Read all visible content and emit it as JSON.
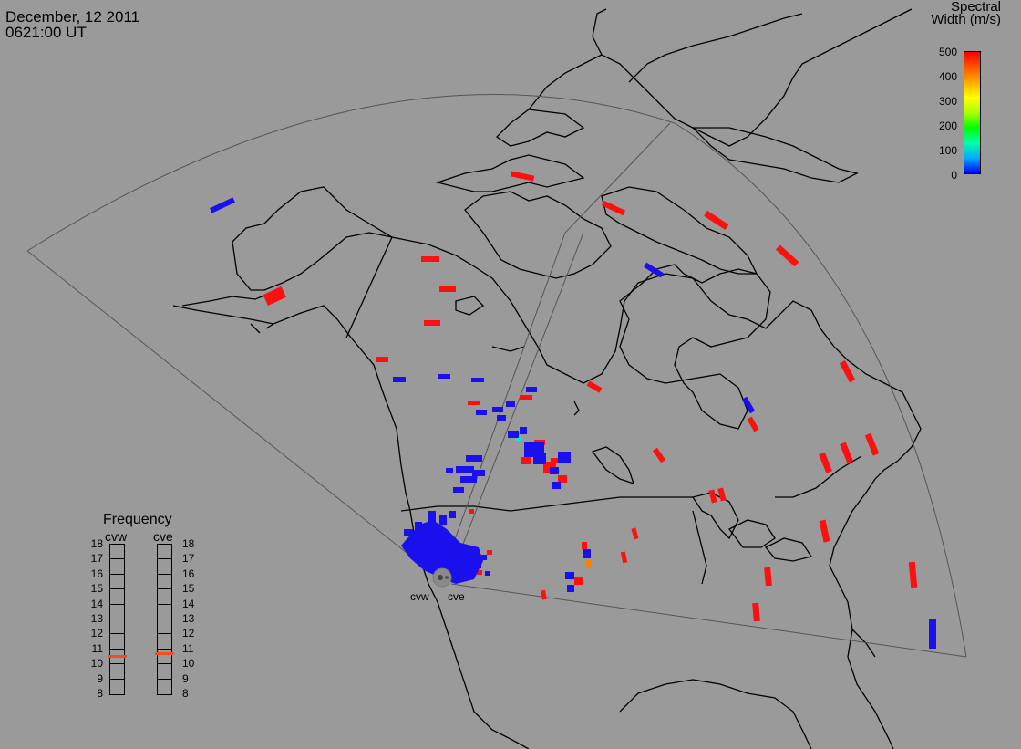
{
  "header": {
    "date": "December, 12 2011",
    "time": "0621:00 UT"
  },
  "colorbar": {
    "title_line1": "Spectral",
    "title_line2": "Width (m/s)",
    "ticks": [
      "500",
      "400",
      "300",
      "200",
      "100",
      "0"
    ],
    "min": 0,
    "max": 500,
    "colors": [
      "#0000ff",
      "#00aaff",
      "#00ffaa",
      "#00ff00",
      "#aaff00",
      "#ffff00",
      "#ffaa00",
      "#ff5500",
      "#ff0000"
    ]
  },
  "radars": {
    "west": "cvw",
    "east": "cve"
  },
  "frequency": {
    "title": "Frequency",
    "columns": [
      "cvw",
      "cve"
    ],
    "scale": [
      "18",
      "17",
      "16",
      "15",
      "14",
      "13",
      "12",
      "11",
      "10",
      "9",
      "8"
    ],
    "cvw_value": 10.5,
    "cve_value": 10.7,
    "marker_color": "#f05020"
  },
  "map_colors": {
    "background": "#9a9a9a",
    "coast": "#000000",
    "fov": "#505050",
    "low": "#1a10ee",
    "high": "#ff1010",
    "mid": "#ff8000",
    "cyan": "#20e0d0"
  }
}
